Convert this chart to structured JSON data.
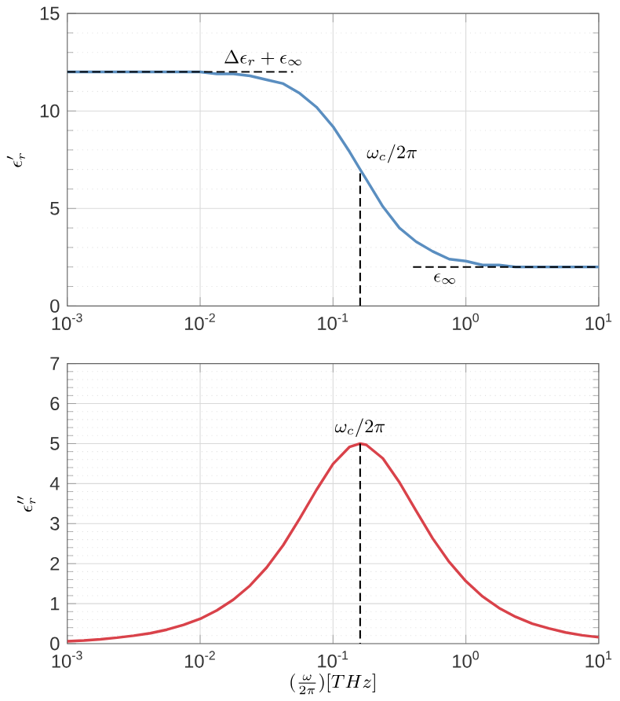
{
  "chart_data": [
    {
      "type": "line",
      "ylabel": "\\epsilon_r'",
      "log": "x",
      "grid": true,
      "xlim": [
        0.001,
        10
      ],
      "ylim": [
        0,
        15
      ],
      "xticks": [
        {
          "value": 0.001,
          "label": "10$^{-3}$"
        },
        {
          "value": 0.01,
          "label": "10$^{-2}$"
        },
        {
          "value": 0.1,
          "label": "10$^{-1}$"
        },
        {
          "value": 1,
          "label": "10$^{0}$"
        },
        {
          "value": 10,
          "label": "10$^{1}$"
        }
      ],
      "yticks": [
        0,
        5,
        10,
        15
      ],
      "x": [
        0.001,
        0.001334,
        0.001778,
        0.002371,
        0.003162,
        0.004217,
        0.005623,
        0.007499,
        0.01,
        0.01334,
        0.01778,
        0.02371,
        0.03162,
        0.04217,
        0.05623,
        0.07499,
        0.1,
        0.1334,
        0.16,
        0.1778,
        0.2371,
        0.3162,
        0.4217,
        0.5623,
        0.7499,
        1,
        1.334,
        1.778,
        2.371,
        3.162,
        4.217,
        5.623,
        7.499,
        10
      ],
      "series": [
        {
          "color": "#5a8ec0",
          "line_style": "solid",
          "values": [
            12.0,
            12.0,
            12.0,
            12.0,
            12.0,
            12.0,
            12.0,
            12.0,
            12.0,
            11.9,
            11.9,
            11.8,
            11.6,
            11.4,
            10.9,
            10.2,
            9.2,
            7.9,
            7.0,
            6.5,
            5.1,
            4.0,
            3.3,
            2.8,
            2.4,
            2.3,
            2.1,
            2.1,
            2.0,
            2.0,
            2.0,
            2.0,
            2.0,
            2.0
          ]
        },
        {
          "color": "#000000",
          "line_style": "dashed",
          "x": [
            0.001,
            0.05
          ],
          "values": [
            12,
            12
          ]
        },
        {
          "color": "#000000",
          "line_style": "dashed",
          "x": [
            0.4,
            10
          ],
          "values": [
            2,
            2
          ]
        },
        {
          "color": "#000000",
          "line_style": "dashed",
          "x": [
            0.16,
            0.16
          ],
          "values": [
            0,
            7
          ]
        }
      ],
      "annotations": [
        {
          "text": "\\Delta\\epsilon_r + \\epsilon_\\infty",
          "x": 0.03,
          "y": 12
        },
        {
          "text": "\\omega_c/2\\pi",
          "x": 0.16,
          "y": 7
        },
        {
          "text": "\\epsilon_\\infty",
          "x": 0.7,
          "y": 2
        }
      ]
    },
    {
      "type": "line",
      "ylabel": "\\epsilon_r''",
      "xlabel": "(\\frac{\\omega}{2\\pi}) [THz]",
      "log": "x",
      "grid": true,
      "xlim": [
        0.001,
        10
      ],
      "ylim": [
        0,
        7
      ],
      "xticks": [
        {
          "value": 0.001,
          "label": "10$^{-3}$"
        },
        {
          "value": 0.01,
          "label": "10$^{-2}$"
        },
        {
          "value": 0.1,
          "label": "10$^{-1}$"
        },
        {
          "value": 1,
          "label": "10$^{0}$"
        },
        {
          "value": 10,
          "label": "10$^{1}$"
        }
      ],
      "yticks": [
        0,
        1,
        2,
        3,
        4,
        5,
        6,
        7
      ],
      "x": [
        0.001,
        0.001334,
        0.001778,
        0.002371,
        0.003162,
        0.004217,
        0.005623,
        0.007499,
        0.01,
        0.01334,
        0.01778,
        0.02371,
        0.03162,
        0.04217,
        0.05623,
        0.07499,
        0.1,
        0.1334,
        0.16,
        0.1778,
        0.2371,
        0.3162,
        0.4217,
        0.5623,
        0.7499,
        1,
        1.334,
        1.778,
        2.371,
        3.162,
        4.217,
        5.623,
        7.499,
        10
      ],
      "series": [
        {
          "color": "#d9424a",
          "line_style": "solid",
          "values": [
            0.06,
            0.08,
            0.11,
            0.15,
            0.2,
            0.26,
            0.35,
            0.47,
            0.62,
            0.83,
            1.1,
            1.45,
            1.9,
            2.46,
            3.13,
            3.84,
            4.49,
            4.92,
            5.0,
            4.97,
            4.63,
            4.03,
            3.32,
            2.63,
            2.04,
            1.56,
            1.18,
            0.89,
            0.67,
            0.5,
            0.38,
            0.28,
            0.21,
            0.16
          ]
        },
        {
          "color": "#000000",
          "line_style": "dashed",
          "x": [
            0.16,
            0.16
          ],
          "values": [
            5,
            0
          ]
        }
      ],
      "annotations": [
        {
          "text": "\\omega_c/2\\pi",
          "x": 0.16,
          "y": 5
        }
      ]
    }
  ]
}
